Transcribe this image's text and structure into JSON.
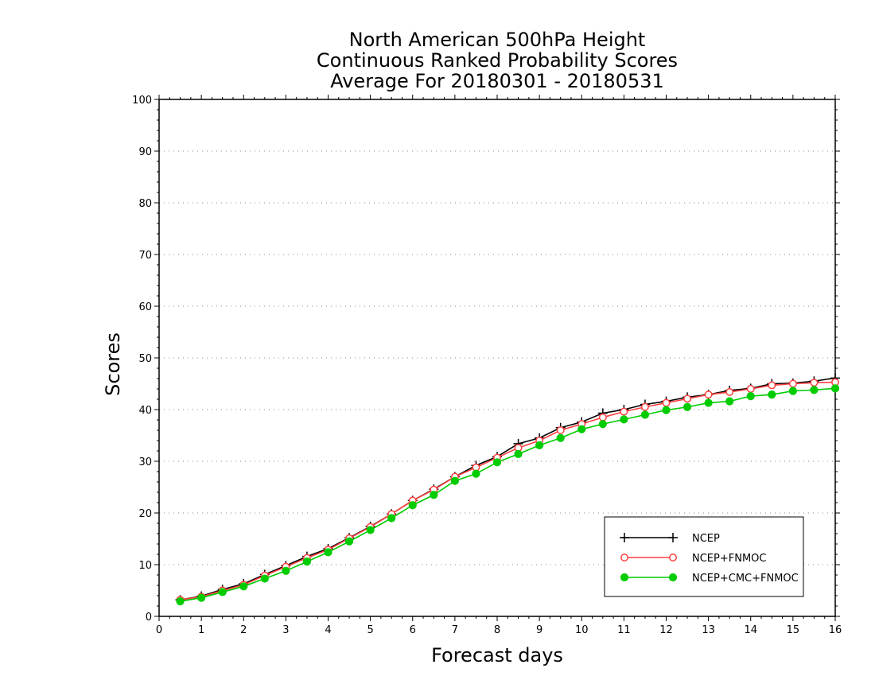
{
  "chart_data": {
    "type": "line",
    "title": [
      "North American 500hPa Height",
      "Continuous Ranked Probability Scores",
      "Average For 20180301 - 20180531"
    ],
    "xlabel": "Forecast days",
    "ylabel": "Scores",
    "xlim": [
      0,
      16
    ],
    "ylim": [
      0,
      100
    ],
    "xticks": [
      0,
      1,
      2,
      3,
      4,
      5,
      6,
      7,
      8,
      9,
      10,
      11,
      12,
      13,
      14,
      15,
      16
    ],
    "yticks": [
      0,
      10,
      20,
      30,
      40,
      50,
      60,
      70,
      80,
      90,
      100
    ],
    "grid": "horizontal-dotted",
    "legend_position": "bottom-right",
    "x": [
      0.5,
      1,
      1.5,
      2,
      2.5,
      3,
      3.5,
      4,
      4.5,
      5,
      5.5,
      6,
      6.5,
      7,
      7.5,
      8,
      8.5,
      9,
      9.5,
      10,
      10.5,
      11,
      11.5,
      12,
      12.5,
      13,
      13.5,
      14,
      14.5,
      15,
      15.5,
      16
    ],
    "series": [
      {
        "name": "NCEP",
        "color": "#000000",
        "marker": "plus",
        "values": [
          3.2,
          3.9,
          5.2,
          6.3,
          8.1,
          9.8,
          11.6,
          13.1,
          15.2,
          17.4,
          19.8,
          22.4,
          24.6,
          27.0,
          29.2,
          30.9,
          33.4,
          34.5,
          36.5,
          37.6,
          39.3,
          40.0,
          41.0,
          41.6,
          42.4,
          42.9,
          43.7,
          44.1,
          45.0,
          45.1,
          45.5,
          46.1
        ]
      },
      {
        "name": "NCEP+FNMOC",
        "color": "#ff4040",
        "marker": "open-circle",
        "values": [
          3.2,
          3.8,
          5.0,
          6.1,
          7.9,
          9.6,
          11.3,
          12.9,
          15.1,
          17.3,
          19.8,
          22.4,
          24.5,
          27.0,
          28.8,
          30.7,
          32.6,
          34.0,
          36.0,
          37.2,
          38.5,
          39.6,
          40.5,
          41.3,
          42.1,
          42.9,
          43.4,
          44.0,
          44.7,
          45.0,
          45.2,
          45.3
        ]
      },
      {
        "name": "NCEP+CMC+FNMOC",
        "color": "#00cc00",
        "marker": "filled-circle",
        "values": [
          2.9,
          3.6,
          4.7,
          5.8,
          7.3,
          8.8,
          10.6,
          12.4,
          14.5,
          16.7,
          19.0,
          21.5,
          23.5,
          26.2,
          27.6,
          29.8,
          31.4,
          33.1,
          34.5,
          36.2,
          37.2,
          38.1,
          39.0,
          39.9,
          40.5,
          41.3,
          41.6,
          42.6,
          42.9,
          43.6,
          43.8,
          44.1
        ]
      }
    ]
  }
}
